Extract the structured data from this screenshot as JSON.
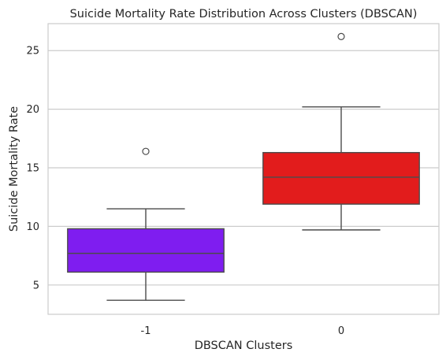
{
  "chart_data": {
    "type": "boxplot",
    "title": "Suicide Mortality Rate Distribution Across Clusters (DBSCAN)",
    "xlabel": "DBSCAN Clusters",
    "ylabel": "Suicide Mortality Rate",
    "ylim": [
      2.5,
      27.3
    ],
    "yticks": [
      5,
      10,
      15,
      20,
      25
    ],
    "grid": "horizontal",
    "categories": [
      "-1",
      "0"
    ],
    "boxes": [
      {
        "category": "-1",
        "whisker_low": 3.7,
        "q1": 6.1,
        "median": 7.7,
        "q3": 9.8,
        "whisker_high": 11.5,
        "outliers": [
          16.4
        ],
        "color": "#7f1df0"
      },
      {
        "category": "0",
        "whisker_low": 9.7,
        "q1": 11.9,
        "median": 14.2,
        "q3": 16.3,
        "whisker_high": 20.2,
        "outliers": [
          26.2
        ],
        "color": "#e21c1c"
      }
    ]
  },
  "colors": {
    "grid": "#cccccc",
    "frame": "#cccccc",
    "lines": "#4b4b4b"
  }
}
